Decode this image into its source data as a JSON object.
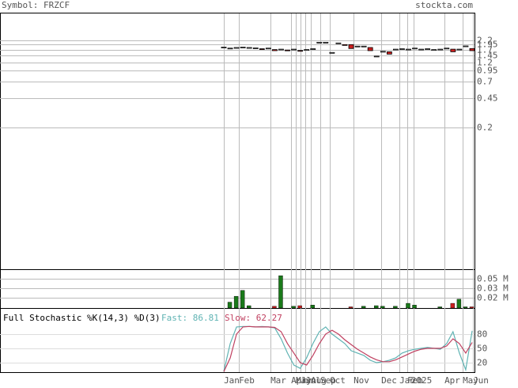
{
  "header": {
    "symbol": "Symbol: FRZCF",
    "site": "stockta.com"
  },
  "chart_data": [
    {
      "type": "candlestick",
      "open": [
        1.8,
        1.75,
        1.78,
        1.8,
        1.78,
        1.76,
        1.74,
        1.75,
        1.7,
        1.7,
        1.68,
        1.7,
        1.66,
        1.68,
        1.72,
        2.05,
        2.05,
        1.55,
        2.0,
        1.95,
        1.95,
        1.85,
        1.85,
        1.8,
        1.4,
        1.6,
        1.6,
        1.7,
        1.72,
        1.7,
        1.75,
        1.7,
        1.72,
        1.68,
        1.7,
        1.75,
        1.72,
        1.7,
        1.85,
        1.75
      ],
      "close": [
        1.82,
        1.77,
        1.8,
        1.82,
        1.8,
        1.78,
        1.72,
        1.77,
        1.65,
        1.72,
        1.66,
        1.72,
        1.64,
        1.7,
        1.74,
        2.08,
        2.08,
        1.57,
        2.04,
        1.92,
        1.75,
        1.87,
        1.87,
        1.65,
        1.42,
        1.62,
        1.5,
        1.72,
        1.74,
        1.72,
        1.77,
        1.72,
        1.74,
        1.7,
        1.72,
        1.77,
        1.6,
        1.72,
        1.88,
        1.65
      ],
      "ylim": [
        0.004,
        4.6
      ],
      "log": true,
      "yticks": [
        2.2,
        1.95,
        1.7,
        1.45,
        1.2,
        0.95,
        0.7,
        0.45,
        0.2
      ],
      "up_color": "#ffffff",
      "down_color": "#cc2020",
      "x_labels": [
        "Jan",
        "Feb",
        "Mar",
        "Apr",
        "May",
        "Jun",
        "Jul",
        "Aug",
        "Sep",
        "Oct",
        "Nov",
        "Dec",
        "Jan",
        "Feb",
        "2025",
        "Apr",
        "May",
        "Jun"
      ]
    },
    {
      "type": "volume",
      "values": [
        0,
        0.01,
        0.02,
        0.03,
        0.004,
        0,
        0,
        0,
        0.003,
        0.055,
        0,
        0.003,
        0.004,
        0,
        0.005,
        0,
        0,
        0,
        0,
        0,
        0.002,
        0,
        0.003,
        0,
        0.004,
        0.003,
        0,
        0.003,
        0,
        0.008,
        0.005,
        0,
        0,
        0,
        0.002,
        0,
        0.008,
        0.015,
        0.002,
        0.002
      ],
      "colors": [
        "#1a7a1a",
        "#cc2020"
      ],
      "ylim": [
        0,
        0.066
      ],
      "yticks": [
        {
          "value": 0.05,
          "label": "0.05 M"
        },
        {
          "value": 0.034,
          "label": "0.03 M"
        },
        {
          "value": 0.017,
          "label": "0.02 M"
        }
      ]
    },
    {
      "type": "line",
      "title": "Full Stochastic %K(14,3) %D(3)",
      "fast_label": "Fast: 86.81",
      "slow_label": "Slow: 62.27",
      "series": [
        {
          "name": "Fast",
          "color": "#5fb3b3",
          "values": [
            2,
            60,
            95,
            96,
            96,
            95,
            96,
            95,
            93,
            70,
            40,
            15,
            8,
            30,
            60,
            85,
            95,
            80,
            70,
            60,
            45,
            40,
            35,
            25,
            20,
            22,
            25,
            30,
            40,
            45,
            48,
            50,
            52,
            50,
            48,
            60,
            85,
            40,
            5,
            86.81
          ]
        },
        {
          "name": "Slow",
          "color": "#c04060",
          "values": [
            1,
            30,
            80,
            95,
            96,
            95,
            95,
            95,
            94,
            85,
            60,
            40,
            20,
            15,
            35,
            60,
            80,
            88,
            80,
            68,
            58,
            48,
            40,
            32,
            26,
            22,
            22,
            26,
            32,
            38,
            44,
            48,
            50,
            50,
            50,
            55,
            70,
            60,
            40,
            62.27
          ]
        }
      ],
      "ylim": [
        0,
        133
      ],
      "yticks": [
        80,
        50,
        20
      ]
    }
  ]
}
